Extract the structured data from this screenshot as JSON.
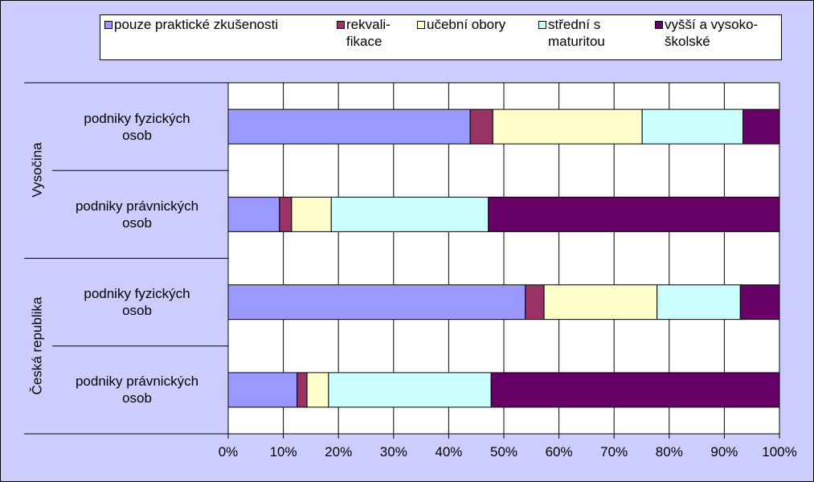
{
  "chart_data": {
    "type": "stacked-barh",
    "groups": [
      "Vysočina",
      "Česká republika"
    ],
    "categories": [
      "podniky fyzických osob",
      "podniky právnických osob",
      "podniky fyzických osob",
      "podniky právnických osob"
    ],
    "series": [
      {
        "name": "pouze praktické zkušenosti",
        "color": "#9999ff",
        "values": [
          43.9,
          9.3,
          53.9,
          12.5
        ]
      },
      {
        "name": "rekvali-fikace",
        "color": "#993366",
        "values": [
          4.1,
          2.2,
          3.4,
          1.8
        ]
      },
      {
        "name": "učební obory",
        "color": "#ffffcc",
        "values": [
          27.1,
          7.2,
          20.5,
          3.9
        ]
      },
      {
        "name": "střední s maturitou",
        "color": "#ccffff",
        "values": [
          18.3,
          28.5,
          15.1,
          29.5
        ]
      },
      {
        "name": "vyšší a vysoko-školské",
        "color": "#660066",
        "values": [
          6.6,
          52.8,
          7.1,
          52.3
        ]
      }
    ],
    "xlim": [
      0,
      100
    ],
    "xticks": [
      {
        "value": 0,
        "label": "0%"
      },
      {
        "value": 10,
        "label": "10%"
      },
      {
        "value": 20,
        "label": "20%"
      },
      {
        "value": 30,
        "label": "30%"
      },
      {
        "value": 40,
        "label": "40%"
      },
      {
        "value": 50,
        "label": "50%"
      },
      {
        "value": 60,
        "label": "60%"
      },
      {
        "value": 70,
        "label": "70%"
      },
      {
        "value": 80,
        "label": "80%"
      },
      {
        "value": 90,
        "label": "90%"
      },
      {
        "value": 100,
        "label": "100%"
      }
    ],
    "grid": true,
    "legend": "top"
  }
}
